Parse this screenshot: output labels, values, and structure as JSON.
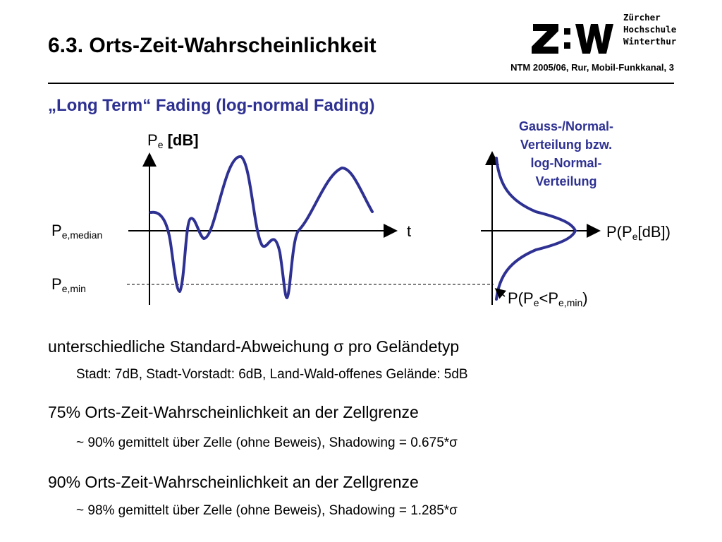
{
  "slide": {
    "title": "6.3. Orts-Zeit-Wahrscheinlichkeit",
    "info": "NTM 2005/06, Rur, Mobil-Funkkanal, 3",
    "subtitle": "„Long Term“ Fading (log-normal Fading)"
  },
  "logo": {
    "mark": "Z:W",
    "lines": [
      "Zürcher",
      "Hochschule",
      "Winterthur"
    ]
  },
  "diagram": {
    "y_axis_label": {
      "main": "P",
      "sub": "e",
      "tail": " [dB]"
    },
    "x_axis_label": "t",
    "median_label": {
      "main": "P",
      "sub": "e,median"
    },
    "min_label": {
      "main": "P",
      "sub": "e,min"
    },
    "distribution_note": [
      "Gauss-/Normal-",
      "Verteilung bzw.",
      "log-Normal-",
      "Verteilung"
    ],
    "distribution_axis_label": {
      "pre": "P(P",
      "sub": "e",
      "post": "[dB])"
    },
    "tail_prob_label": {
      "pre": "P(P",
      "sub1": "e",
      "mid": "<P",
      "sub2": "e,min",
      "post": ")"
    },
    "colors": {
      "curve": "#2e3192",
      "note": "#2e3192",
      "axes": "#000000"
    }
  },
  "bullets": [
    {
      "text": "unterschiedliche Standard-Abweichung σ pro Geländetyp",
      "sub": "Stadt: 7dB, Stadt-Vorstadt: 6dB, Land-Wald-offenes Gelände: 5dB"
    },
    {
      "text": "75% Orts-Zeit-Wahrscheinlichkeit an der Zellgrenze",
      "sub": "~ 90% gemittelt über Zelle (ohne Beweis), Shadowing = 0.675*σ"
    },
    {
      "text": "90% Orts-Zeit-Wahrscheinlichkeit an der Zellgrenze",
      "sub": "~ 98% gemittelt über Zelle (ohne Beweis), Shadowing = 1.285*σ"
    }
  ]
}
